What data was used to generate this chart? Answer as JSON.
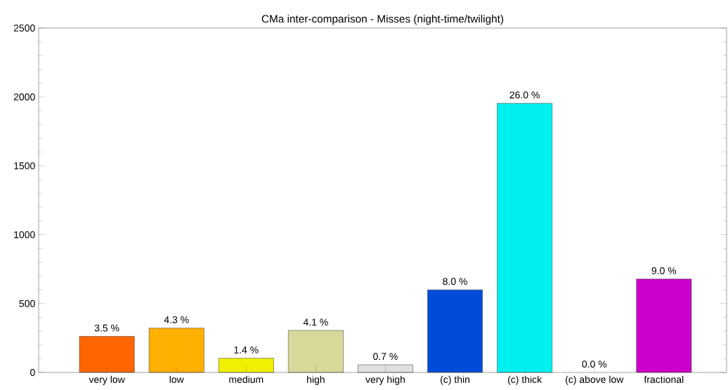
{
  "chart_data": {
    "type": "bar",
    "title": "CMa inter-comparison - Misses (night-time/twilight)",
    "categories": [
      "very low",
      "low",
      "medium",
      "high",
      "very high",
      "(c) thin",
      "(c) thick",
      "(c) above low",
      "fractional"
    ],
    "values": [
      262,
      322,
      103,
      305,
      56,
      600,
      1954,
      0,
      678
    ],
    "colors": [
      "#ff6600",
      "#ffb000",
      "#f0f000",
      "#d8d89a",
      "#e0e0e0",
      "#004cd8",
      "#00f0f0",
      null,
      "#cc00cc"
    ],
    "annotations": [
      {
        "text": "3.5 %",
        "x": "very low",
        "y": 262
      },
      {
        "text": "4.3 %",
        "x": "low",
        "y": 322
      },
      {
        "text": "1.4 %",
        "x": "medium",
        "y": 103
      },
      {
        "text": "4.1 %",
        "x": "high",
        "y": 305
      },
      {
        "text": "0.7 %",
        "x": "very high",
        "y": 56
      },
      {
        "text": "8.0 %",
        "x": "(c) thin",
        "y": 600
      },
      {
        "text": "26.0 %",
        "x": "(c) thick",
        "y": 1954
      },
      {
        "text": "0.0 %",
        "x": "(c) above low",
        "y": 0
      },
      {
        "text": "9.0 %",
        "x": "fractional",
        "y": 678
      }
    ],
    "ylim": [
      0,
      2500
    ],
    "yticks": [
      0,
      500,
      1000,
      1500,
      2000,
      2500
    ],
    "grid": false
  }
}
